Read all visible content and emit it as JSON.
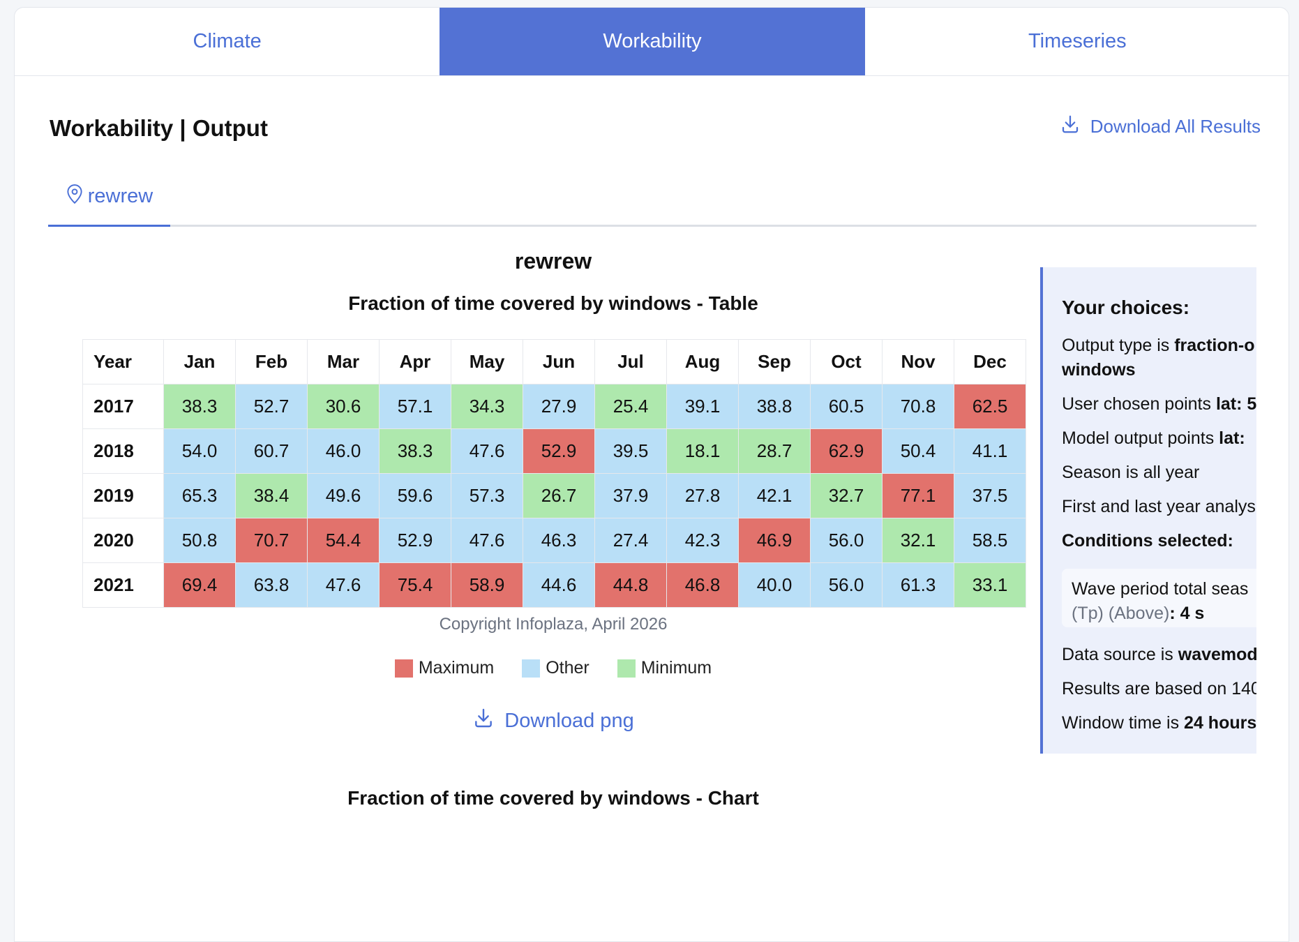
{
  "tabs": [
    {
      "label": "Climate",
      "active": false
    },
    {
      "label": "Workability",
      "active": true
    },
    {
      "label": "Timeseries",
      "active": false
    }
  ],
  "header": {
    "title": "Workability | Output",
    "download_all": "Download All Results"
  },
  "location_tab": {
    "label": "rewrew"
  },
  "main": {
    "location_name": "rewrew",
    "table_title": "Fraction of time covered by windows - Table",
    "copyright": "Copyright Infoplaza, April 2026",
    "download_png": "Download png",
    "chart_title": "Fraction of time covered by windows - Chart"
  },
  "table": {
    "year_header": "Year",
    "months": [
      "Jan",
      "Feb",
      "Mar",
      "Apr",
      "May",
      "Jun",
      "Jul",
      "Aug",
      "Sep",
      "Oct",
      "Nov",
      "Dec"
    ],
    "rows": [
      {
        "year": "2017",
        "values": [
          "38.3",
          "52.7",
          "30.6",
          "57.1",
          "34.3",
          "27.9",
          "25.4",
          "39.1",
          "38.8",
          "60.5",
          "70.8",
          "62.5"
        ],
        "classes": [
          "min",
          "oth",
          "min",
          "oth",
          "min",
          "oth",
          "min",
          "oth",
          "oth",
          "oth",
          "oth",
          "max"
        ]
      },
      {
        "year": "2018",
        "values": [
          "54.0",
          "60.7",
          "46.0",
          "38.3",
          "47.6",
          "52.9",
          "39.5",
          "18.1",
          "28.7",
          "62.9",
          "50.4",
          "41.1"
        ],
        "classes": [
          "oth",
          "oth",
          "oth",
          "min",
          "oth",
          "max",
          "oth",
          "min",
          "min",
          "max",
          "oth",
          "oth"
        ]
      },
      {
        "year": "2019",
        "values": [
          "65.3",
          "38.4",
          "49.6",
          "59.6",
          "57.3",
          "26.7",
          "37.9",
          "27.8",
          "42.1",
          "32.7",
          "77.1",
          "37.5"
        ],
        "classes": [
          "oth",
          "min",
          "oth",
          "oth",
          "oth",
          "min",
          "oth",
          "oth",
          "oth",
          "min",
          "max",
          "oth"
        ]
      },
      {
        "year": "2020",
        "values": [
          "50.8",
          "70.7",
          "54.4",
          "52.9",
          "47.6",
          "46.3",
          "27.4",
          "42.3",
          "46.9",
          "56.0",
          "32.1",
          "58.5"
        ],
        "classes": [
          "oth",
          "max",
          "max",
          "oth",
          "oth",
          "oth",
          "oth",
          "oth",
          "max",
          "oth",
          "min",
          "oth"
        ]
      },
      {
        "year": "2021",
        "values": [
          "69.4",
          "63.8",
          "47.6",
          "75.4",
          "58.9",
          "44.6",
          "44.8",
          "46.8",
          "40.0",
          "56.0",
          "61.3",
          "33.1"
        ],
        "classes": [
          "max",
          "oth",
          "oth",
          "max",
          "max",
          "oth",
          "max",
          "max",
          "oth",
          "oth",
          "oth",
          "min"
        ]
      }
    ]
  },
  "legend": [
    {
      "label": "Maximum",
      "color": "#e2726c"
    },
    {
      "label": "Other",
      "color": "#b9dff7"
    },
    {
      "label": "Minimum",
      "color": "#aee8ad"
    }
  ],
  "choices": {
    "title": "Your choices:",
    "output_type_prefix": "Output type is ",
    "output_type_value_1": "fraction-o",
    "output_type_value_2": "windows",
    "user_points_prefix": "User chosen points ",
    "user_points_value": "lat: 5",
    "model_points_prefix": "Model output points ",
    "model_points_value": "lat:",
    "season": "Season is all year",
    "years": "First and last year analys",
    "conditions_title": "Conditions selected:",
    "condition_line1": "Wave period total seas",
    "condition_line2_muted": "(Tp) (Above)",
    "condition_line2_value": ": 4 s",
    "data_source_prefix": "Data source is ",
    "data_source_value": "wavemod",
    "results_based": "Results are based on 140",
    "window_prefix": "Window time is ",
    "window_value": "24 hours"
  },
  "colors": {
    "accent": "#5372d4",
    "maximum": "#e2726c",
    "other": "#b9dff7",
    "minimum": "#aee8ad"
  }
}
